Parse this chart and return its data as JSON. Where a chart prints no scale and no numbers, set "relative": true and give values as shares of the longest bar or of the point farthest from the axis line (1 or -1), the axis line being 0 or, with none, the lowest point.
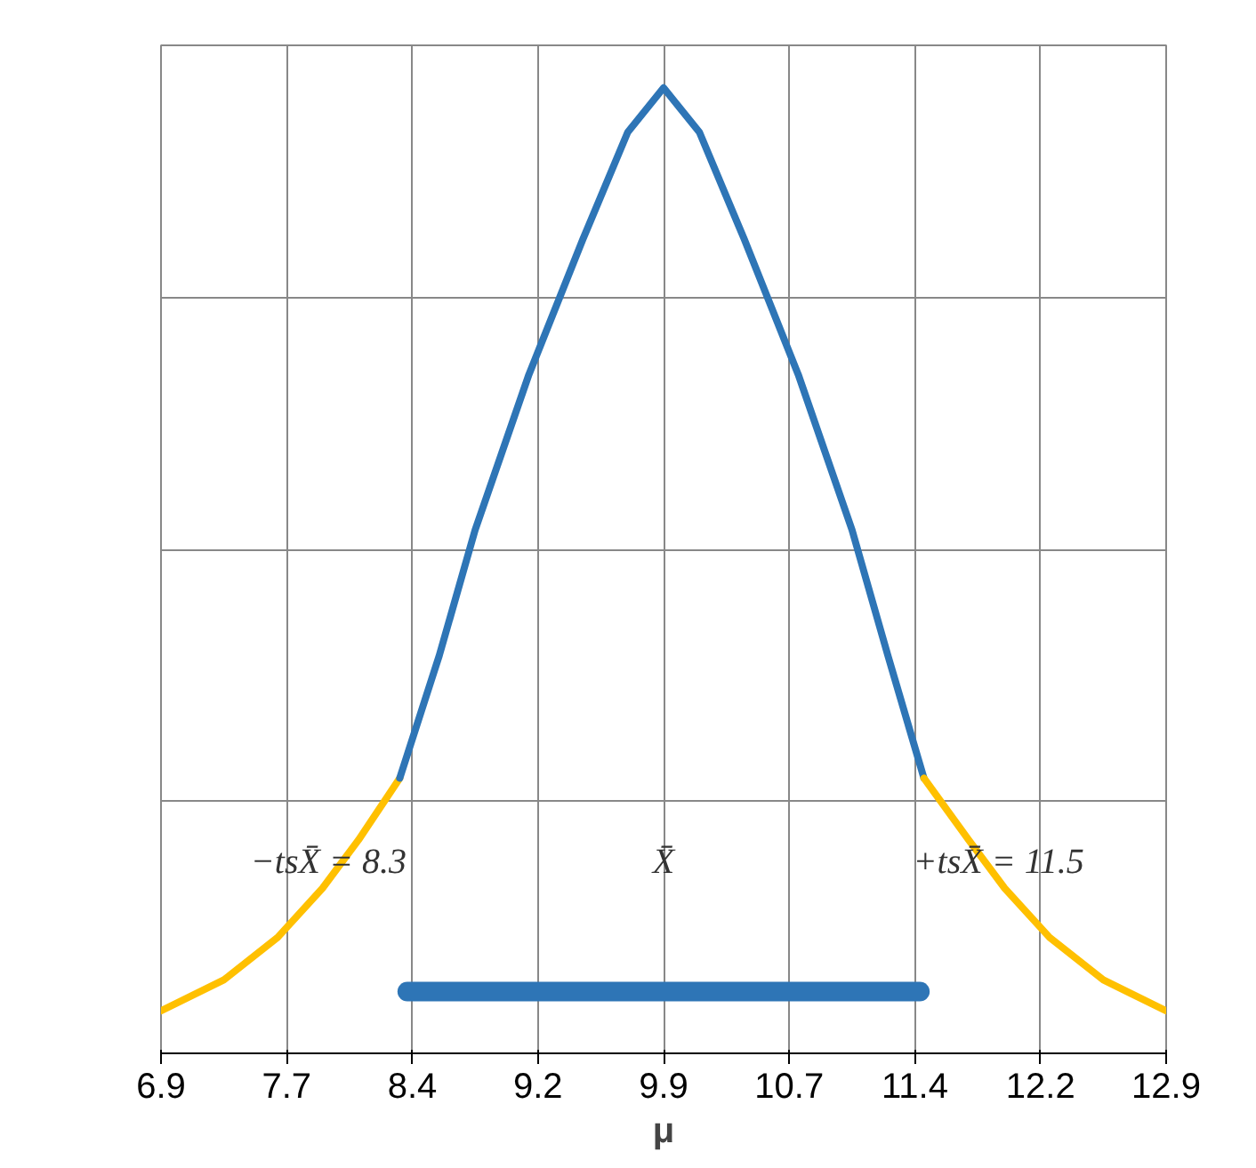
{
  "chart_data": {
    "type": "line",
    "xlabel": "μ",
    "relative": true,
    "grid": true,
    "line_style": "solid",
    "xlim": [
      6.9,
      12.9
    ],
    "xticks": [
      6.9,
      {
        "value": 7.65,
        "label": "7.7"
      },
      8.4,
      {
        "value": 9.15,
        "label": "9.2"
      },
      9.9,
      {
        "value": 10.65,
        "label": "10.7"
      },
      11.4,
      {
        "value": 12.15,
        "label": "12.2"
      },
      12.9
    ],
    "series": [
      {
        "color": "#ffc000",
        "x": [
          6.9,
          7.275,
          7.596,
          7.864,
          8.079,
          8.325
        ],
        "values": [
          0.044,
          0.076,
          0.12,
          0.171,
          0.221,
          0.285
        ]
      },
      {
        "color": "#2e75b6",
        "x": [
          8.325,
          8.561,
          8.775,
          9.096,
          9.418,
          9.686,
          9.9,
          10.114,
          10.382,
          10.704,
          11.025,
          11.239,
          11.454
        ],
        "values": [
          0.285,
          0.412,
          0.542,
          0.703,
          0.843,
          0.954,
          1,
          0.954,
          0.843,
          0.703,
          0.542,
          0.412,
          0.285
        ]
      },
      {
        "color": "#ffc000",
        "x": [
          11.454,
          11.721,
          11.936,
          12.204,
          12.525,
          12.9
        ],
        "values": [
          0.285,
          0.221,
          0.171,
          0.12,
          0.076,
          0.044
        ]
      },
      {
        "color": "#2e75b6",
        "x": [
          8.37,
          11.43
        ],
        "values": [
          0.064,
          0.064
        ]
      }
    ],
    "annotations": [
      "−tsX̄ = 8.3",
      "X̄",
      "+tsX̄ = 11.5"
    ]
  }
}
